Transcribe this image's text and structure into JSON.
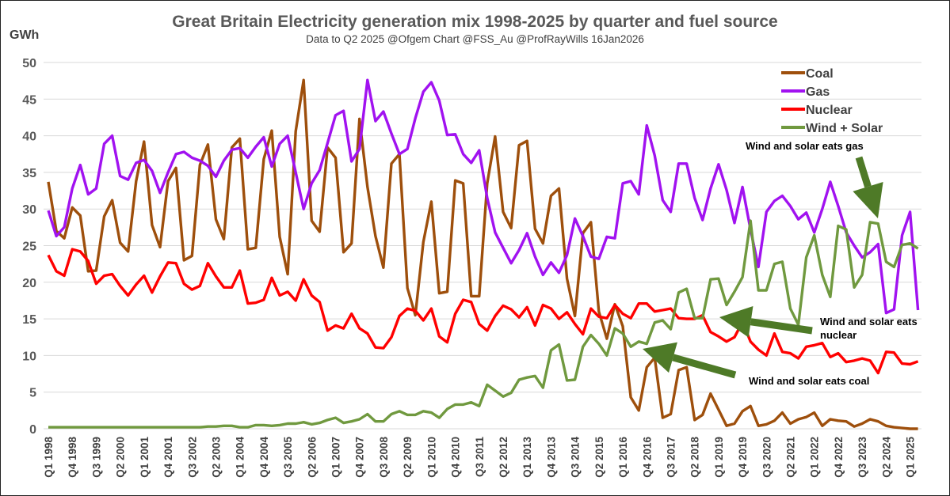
{
  "chart_data": {
    "type": "line",
    "title": "Great Britain Electricity generation mix 1998-2025 by quarter and fuel source",
    "subtitle": "Data to Q2 2025 @Ofgem Chart @FSS_Au @ProfRayWills 16Jan2026",
    "ylabel": "GWh",
    "xlabel": "",
    "ylim": [
      0,
      50
    ],
    "yticks": [
      "0",
      "5",
      "10",
      "15",
      "20",
      "25",
      "30",
      "35",
      "40",
      "45",
      "50"
    ],
    "grid": true,
    "legend_position": "top-right",
    "x_note": "quarterly from Q1 1998 to Q2 2025 (110 quarters); labels every 3 quarters",
    "tick_labels": [
      "Q1 1998",
      "Q4 1998",
      "Q3 1999",
      "Q2 2000",
      "Q1 2001",
      "Q4 2001",
      "Q3 2002",
      "Q2 2003",
      "Q1 2004",
      "Q4 2004",
      "Q3 2005",
      "Q2 2006",
      "Q1 2007",
      "Q4 2007",
      "Q3 2008",
      "Q2 2009",
      "Q1 2010",
      "Q4 2010",
      "Q3 2011",
      "Q2 2012",
      "Q1 2013",
      "Q4 2013",
      "Q3 2014",
      "Q2 2015",
      "Q1 2016",
      "Q4 2016",
      "Q3 2017",
      "Q2 2018",
      "Q1 2019",
      "Q4 2019",
      "Q3 2020",
      "Q2 2021",
      "Q1 2022",
      "Q4 2022",
      "Q3 2023",
      "Q2 2024",
      "Q1 2025"
    ],
    "series": [
      {
        "name": "Coal",
        "color": "#9E4F0C",
        "values": [
          33.7,
          27,
          26,
          30.2,
          29.1,
          21.5,
          21.6,
          29,
          31.2,
          25.4,
          24.2,
          33.8,
          39.2,
          27.8,
          24.8,
          33.8,
          35.6,
          23,
          23.6,
          36,
          38.8,
          28.6,
          25.9,
          38.4,
          39.6,
          24.5,
          24.7,
          36.8,
          40.7,
          26.2,
          21.1,
          40.6,
          47.6,
          28.4,
          26.9,
          38.4,
          37,
          24.1,
          25.3,
          42.3,
          33,
          26.3,
          22,
          36.2,
          37.5,
          19.2,
          15.5,
          25.5,
          31,
          18.5,
          18.7,
          33.9,
          33.5,
          18.1,
          18.1,
          33.5,
          39.9,
          29.6,
          27.4,
          38.7,
          39.3,
          27.3,
          25.3,
          31.8,
          32.8,
          20.5,
          15.4,
          26.7,
          28.2,
          16,
          12.3,
          17,
          14,
          4.3,
          2.5,
          8.4,
          9.7,
          1.5,
          2,
          8,
          8.4,
          1.2,
          1.9,
          4.8,
          2.6,
          0.4,
          0.7,
          2.4,
          3.1,
          0.4,
          0.6,
          1.1,
          2.2,
          0.7,
          1.3,
          1.6,
          2.2,
          0.4,
          1.3,
          1.1,
          1,
          0.3,
          0.7,
          1.3,
          1,
          0.4,
          0.2,
          0.1,
          0,
          0
        ]
      },
      {
        "name": "Gas",
        "color": "#A112F0",
        "values": [
          29.8,
          26.3,
          27.5,
          32.8,
          36,
          32,
          32.8,
          38.9,
          40,
          34.5,
          34,
          36.3,
          36.7,
          35.2,
          32.2,
          35,
          37.5,
          37.8,
          37,
          36.6,
          35.9,
          34.4,
          36.6,
          38.1,
          38.3,
          37,
          38.5,
          39.8,
          35.8,
          38.9,
          40,
          35,
          30,
          33.5,
          35.3,
          39,
          42.8,
          43.4,
          36.5,
          38.2,
          47.6,
          42,
          43.3,
          40.3,
          37.5,
          38.2,
          42.4,
          46,
          47.3,
          44.8,
          40.1,
          40.2,
          37.5,
          36.3,
          38,
          31.5,
          26.8,
          24.7,
          22.6,
          24.4,
          26.7,
          23.5,
          21,
          22.7,
          21.3,
          23.7,
          28.7,
          26.3,
          23.5,
          23.2,
          26.2,
          26,
          33.5,
          33.8,
          32,
          41.4,
          37.3,
          31.2,
          29.6,
          36.2,
          36.2,
          31.5,
          28.5,
          32.8,
          36.1,
          32.6,
          28.1,
          33,
          27.2,
          22.1,
          29.6,
          31.1,
          31.8,
          30.4,
          28.6,
          29.5,
          26.8,
          30,
          33.7,
          30.4,
          26.8,
          25,
          23.4,
          24.1,
          25.2,
          15.8,
          16.3,
          26.4,
          29.6,
          16.2
        ]
      },
      {
        "name": "Nuclear",
        "color": "#FF0000",
        "values": [
          23.7,
          21.5,
          20.9,
          24.5,
          24.2,
          22.9,
          19.8,
          20.9,
          21.1,
          19.5,
          18.2,
          19.7,
          20.9,
          18.6,
          20.8,
          22.7,
          22.6,
          19.8,
          19,
          19.5,
          22.6,
          20.8,
          19.3,
          19.3,
          21.6,
          17.1,
          17.2,
          17.6,
          20.6,
          18.2,
          18.7,
          17.5,
          20.4,
          18.2,
          17.3,
          13.4,
          14.1,
          13.7,
          15.7,
          13.7,
          13,
          11.1,
          11,
          12.5,
          15.4,
          16.4,
          16.1,
          14.8,
          16.4,
          12.6,
          11.8,
          15.7,
          17.6,
          17.3,
          14.3,
          13.4,
          15.4,
          16.8,
          16.3,
          15.2,
          16.6,
          14.1,
          16.9,
          16.4,
          15,
          15.9,
          14.3,
          12.9,
          16.4,
          15.3,
          15.1,
          16.9,
          15.7,
          15.1,
          17.1,
          17.1,
          16,
          16.2,
          16.4,
          15.1,
          15,
          15,
          15.5,
          13.2,
          12.6,
          11.9,
          12.5,
          14.6,
          11.9,
          10.8,
          10,
          13,
          10.5,
          10.3,
          9.6,
          11.2,
          11.4,
          11.7,
          9.8,
          10.3,
          9.1,
          9.3,
          9.6,
          9.3,
          7.6,
          10.5,
          10.4,
          8.9,
          8.8,
          9.2
        ]
      },
      {
        "name": "Wind + Solar",
        "color": "#70993F",
        "values": [
          0.2,
          0.2,
          0.2,
          0.2,
          0.2,
          0.2,
          0.2,
          0.2,
          0.2,
          0.2,
          0.2,
          0.2,
          0.2,
          0.2,
          0.2,
          0.2,
          0.2,
          0.2,
          0.2,
          0.2,
          0.3,
          0.3,
          0.4,
          0.4,
          0.2,
          0.2,
          0.5,
          0.5,
          0.4,
          0.5,
          0.7,
          0.7,
          0.9,
          0.6,
          0.8,
          1.2,
          1.5,
          0.8,
          1,
          1.3,
          2,
          1,
          1,
          2,
          2.4,
          1.9,
          1.9,
          2.4,
          2.2,
          1.5,
          2.7,
          3.3,
          3.3,
          3.6,
          3.1,
          6,
          5.2,
          4.4,
          4.9,
          6.7,
          7,
          7.2,
          5.6,
          10.7,
          11.5,
          6.6,
          6.7,
          11.2,
          12.8,
          11.6,
          10,
          13.7,
          13,
          11.2,
          11.9,
          11.6,
          14.5,
          14.8,
          13.6,
          18.6,
          19.1,
          15.1,
          15.1,
          20.4,
          20.5,
          16.9,
          18.7,
          20.7,
          28.4,
          18.9,
          18.9,
          22.5,
          22.8,
          16.4,
          14.2,
          23.4,
          26.4,
          21,
          18,
          27.7,
          27.2,
          19.3,
          21,
          28.2,
          28,
          22.8,
          22.1,
          25.1,
          25.3,
          24.6
        ]
      }
    ],
    "annotations": [
      "Wind and solar eats gas",
      "Wind and solar eats nuclear",
      "Wind and solar eats coal"
    ],
    "annotation_color": "#4E7A27"
  }
}
